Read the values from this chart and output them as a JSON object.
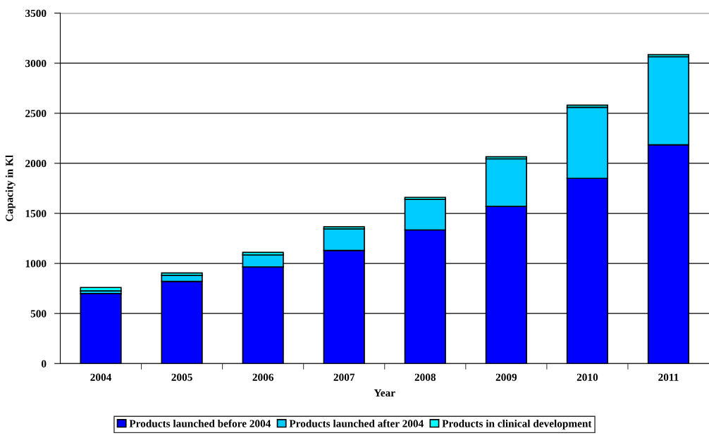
{
  "chart_data": {
    "type": "bar",
    "stacked": true,
    "xlabel": "Year",
    "ylabel": "Capacity in Kl",
    "categories": [
      "2004",
      "2005",
      "2006",
      "2007",
      "2008",
      "2009",
      "2010",
      "2011"
    ],
    "series": [
      {
        "name": "Products launched before 2004",
        "color": "#0000ff",
        "values": [
          700,
          820,
          965,
          1130,
          1335,
          1570,
          1850,
          2185
        ]
      },
      {
        "name": "Products launched after 2004",
        "color": "#00ccff",
        "values": [
          25,
          60,
          120,
          215,
          305,
          475,
          710,
          880
        ]
      },
      {
        "name": "Products in clinical development",
        "color": "#00ffff",
        "values": [
          35,
          25,
          25,
          20,
          20,
          20,
          20,
          20
        ]
      }
    ],
    "ylim": [
      0,
      3500
    ],
    "yticks": [
      0,
      500,
      1000,
      1500,
      2000,
      2500,
      3000,
      3500
    ],
    "grid": "y",
    "legend": "bottom"
  }
}
